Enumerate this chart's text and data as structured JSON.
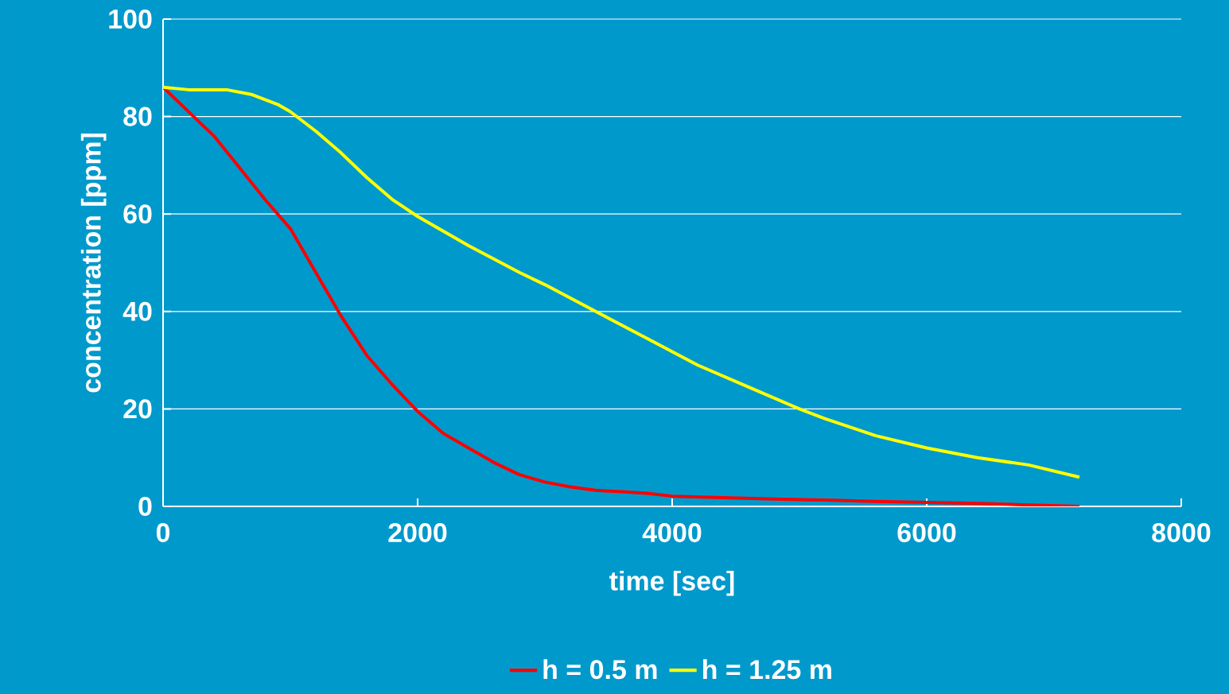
{
  "chart_data": {
    "type": "line",
    "xlabel": "time [sec]",
    "ylabel": "concentration [ppm]",
    "xlim": [
      0,
      8000
    ],
    "ylim": [
      0,
      100
    ],
    "xticks": [
      0,
      2000,
      4000,
      6000,
      8000
    ],
    "yticks": [
      0,
      20,
      40,
      60,
      80,
      100
    ],
    "grid": "y",
    "legend": "bottom",
    "marker": "none",
    "line_style": "solid",
    "series": [
      {
        "name": "h = 0.5 m",
        "color": "#ff0000",
        "x": [
          0,
          400,
          800,
          1000,
          1200,
          1400,
          1600,
          1800,
          2000,
          2200,
          2400,
          2600,
          2800,
          3000,
          3200,
          3400,
          3600,
          3800,
          4000,
          4400,
          4800,
          5200,
          5600,
          6000,
          6400,
          6800,
          7200
        ],
        "values": [
          86,
          76,
          63,
          57,
          48,
          39,
          31,
          25,
          19.5,
          15,
          12,
          9,
          6.5,
          5,
          4,
          3.3,
          3,
          2.7,
          2.1,
          1.8,
          1.5,
          1.3,
          1,
          0.8,
          0.6,
          0.3,
          0
        ]
      },
      {
        "name": "h = 1.25 m",
        "color": "#ffff00",
        "x": [
          0,
          200,
          500,
          700,
          900,
          1000,
          1200,
          1400,
          1600,
          1800,
          2000,
          2400,
          2800,
          3000,
          3400,
          3800,
          4200,
          4600,
          5000,
          5200,
          5600,
          6000,
          6400,
          6800,
          7200
        ],
        "values": [
          86,
          85.5,
          85.5,
          84.5,
          82.5,
          81,
          77,
          72.5,
          67.5,
          63,
          59.5,
          53.5,
          48,
          45.5,
          40,
          34.5,
          29,
          24.5,
          20,
          18,
          14.5,
          12,
          10,
          8.5,
          6
        ]
      }
    ]
  }
}
